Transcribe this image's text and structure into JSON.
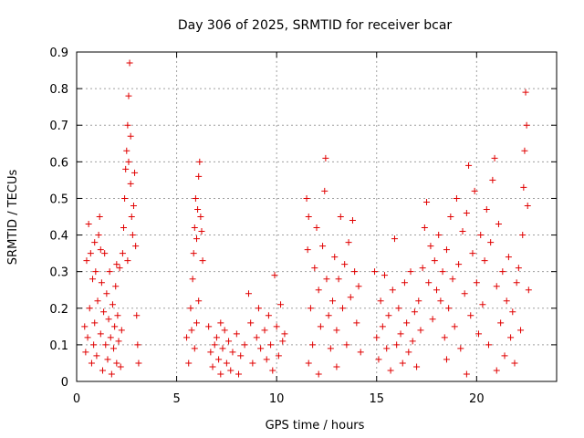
{
  "chart_data": {
    "type": "scatter",
    "title": "Day 306 of 2025, SRMTID for receiver bcar",
    "xlabel": "GPS time / hours",
    "ylabel": "SRMTID / TECUs",
    "xlim": [
      0,
      24
    ],
    "ylim": [
      0,
      0.9
    ],
    "xticks": [
      0,
      5,
      10,
      15,
      20
    ],
    "xtick_labels": [
      "0",
      "5",
      "10",
      "15",
      "20"
    ],
    "yticks": [
      0,
      0.1,
      0.2,
      0.3,
      0.4,
      0.5,
      0.6,
      0.7,
      0.8,
      0.9
    ],
    "ytick_labels": [
      "0",
      "0.1",
      "0.2",
      "0.3",
      "0.4",
      "0.5",
      "0.6",
      "0.7",
      "0.8",
      "0.9"
    ],
    "grid": true,
    "marker": "plus",
    "color": "#e00000",
    "series": [
      {
        "name": "SRMTID",
        "points": [
          [
            0.4,
            0.15
          ],
          [
            0.45,
            0.08
          ],
          [
            0.5,
            0.33
          ],
          [
            0.55,
            0.12
          ],
          [
            0.6,
            0.43
          ],
          [
            0.65,
            0.2
          ],
          [
            0.7,
            0.35
          ],
          [
            0.75,
            0.05
          ],
          [
            0.8,
            0.28
          ],
          [
            0.85,
            0.1
          ],
          [
            0.9,
            0.16
          ],
          [
            0.95,
            0.3
          ],
          [
            1.0,
            0.07
          ],
          [
            1.05,
            0.22
          ],
          [
            1.1,
            0.4
          ],
          [
            1.15,
            0.45
          ],
          [
            1.2,
            0.13
          ],
          [
            1.25,
            0.27
          ],
          [
            1.3,
            0.03
          ],
          [
            1.35,
            0.19
          ],
          [
            1.4,
            0.35
          ],
          [
            1.45,
            0.1
          ],
          [
            1.5,
            0.24
          ],
          [
            1.55,
            0.06
          ],
          [
            1.6,
            0.17
          ],
          [
            1.65,
            0.3
          ],
          [
            1.7,
            0.12
          ],
          [
            1.75,
            0.02
          ],
          [
            1.8,
            0.21
          ],
          [
            1.85,
            0.09
          ],
          [
            1.9,
            0.15
          ],
          [
            1.95,
            0.26
          ],
          [
            2.0,
            0.05
          ],
          [
            2.05,
            0.18
          ],
          [
            2.1,
            0.11
          ],
          [
            2.15,
            0.31
          ],
          [
            2.2,
            0.04
          ],
          [
            2.25,
            0.14
          ],
          [
            2.3,
            0.35
          ],
          [
            2.35,
            0.42
          ],
          [
            2.4,
            0.5
          ],
          [
            2.45,
            0.58
          ],
          [
            2.5,
            0.63
          ],
          [
            2.55,
            0.7
          ],
          [
            2.6,
            0.78
          ],
          [
            2.65,
            0.87
          ],
          [
            2.7,
            0.54
          ],
          [
            2.75,
            0.45
          ],
          [
            2.8,
            0.4
          ],
          [
            2.85,
            0.48
          ],
          [
            2.9,
            0.57
          ],
          [
            2.95,
            0.37
          ],
          [
            3.0,
            0.18
          ],
          [
            3.05,
            0.1
          ],
          [
            3.1,
            0.05
          ],
          [
            2.0,
            0.32
          ],
          [
            1.2,
            0.36
          ],
          [
            0.9,
            0.38
          ],
          [
            2.6,
            0.6
          ],
          [
            2.7,
            0.67
          ],
          [
            2.55,
            0.33
          ],
          [
            5.5,
            0.12
          ],
          [
            5.6,
            0.05
          ],
          [
            5.7,
            0.2
          ],
          [
            5.8,
            0.28
          ],
          [
            5.85,
            0.35
          ],
          [
            5.9,
            0.42
          ],
          [
            5.95,
            0.5
          ],
          [
            6.0,
            0.39
          ],
          [
            6.05,
            0.47
          ],
          [
            6.1,
            0.56
          ],
          [
            6.15,
            0.6
          ],
          [
            6.2,
            0.45
          ],
          [
            6.25,
            0.41
          ],
          [
            6.3,
            0.33
          ],
          [
            6.0,
            0.16
          ],
          [
            5.9,
            0.09
          ],
          [
            6.1,
            0.22
          ],
          [
            5.75,
            0.14
          ],
          [
            6.6,
            0.15
          ],
          [
            6.7,
            0.08
          ],
          [
            6.8,
            0.04
          ],
          [
            6.9,
            0.1
          ],
          [
            7.0,
            0.12
          ],
          [
            7.1,
            0.06
          ],
          [
            7.2,
            0.02
          ],
          [
            7.3,
            0.09
          ],
          [
            7.4,
            0.14
          ],
          [
            7.5,
            0.05
          ],
          [
            7.6,
            0.11
          ],
          [
            7.7,
            0.03
          ],
          [
            7.8,
            0.08
          ],
          [
            8.0,
            0.13
          ],
          [
            8.2,
            0.07
          ],
          [
            8.4,
            0.1
          ],
          [
            8.6,
            0.24
          ],
          [
            8.7,
            0.16
          ],
          [
            8.8,
            0.05
          ],
          [
            9.0,
            0.12
          ],
          [
            9.1,
            0.2
          ],
          [
            9.2,
            0.09
          ],
          [
            9.4,
            0.14
          ],
          [
            9.5,
            0.06
          ],
          [
            9.6,
            0.18
          ],
          [
            9.7,
            0.1
          ],
          [
            9.8,
            0.03
          ],
          [
            9.9,
            0.29
          ],
          [
            10.0,
            0.15
          ],
          [
            10.1,
            0.07
          ],
          [
            10.2,
            0.21
          ],
          [
            10.3,
            0.11
          ],
          [
            10.4,
            0.13
          ],
          [
            7.2,
            0.16
          ],
          [
            8.1,
            0.02
          ],
          [
            11.5,
            0.5
          ],
          [
            11.55,
            0.36
          ],
          [
            11.6,
            0.45
          ],
          [
            11.7,
            0.2
          ],
          [
            11.8,
            0.1
          ],
          [
            11.9,
            0.31
          ],
          [
            12.0,
            0.42
          ],
          [
            12.1,
            0.25
          ],
          [
            12.2,
            0.15
          ],
          [
            12.3,
            0.37
          ],
          [
            12.4,
            0.52
          ],
          [
            12.45,
            0.61
          ],
          [
            12.5,
            0.28
          ],
          [
            12.6,
            0.18
          ],
          [
            12.7,
            0.09
          ],
          [
            12.8,
            0.22
          ],
          [
            12.9,
            0.34
          ],
          [
            13.0,
            0.14
          ],
          [
            13.1,
            0.28
          ],
          [
            13.2,
            0.45
          ],
          [
            13.3,
            0.2
          ],
          [
            13.4,
            0.32
          ],
          [
            13.5,
            0.1
          ],
          [
            13.6,
            0.38
          ],
          [
            13.7,
            0.23
          ],
          [
            13.8,
            0.44
          ],
          [
            13.9,
            0.3
          ],
          [
            14.0,
            0.16
          ],
          [
            14.1,
            0.26
          ],
          [
            14.2,
            0.08
          ],
          [
            11.6,
            0.05
          ],
          [
            12.1,
            0.02
          ],
          [
            13.0,
            0.04
          ],
          [
            14.9,
            0.3
          ],
          [
            15.0,
            0.12
          ],
          [
            15.1,
            0.06
          ],
          [
            15.2,
            0.22
          ],
          [
            15.3,
            0.15
          ],
          [
            15.4,
            0.29
          ],
          [
            15.5,
            0.09
          ],
          [
            15.6,
            0.18
          ],
          [
            15.7,
            0.03
          ],
          [
            15.8,
            0.25
          ],
          [
            15.9,
            0.39
          ],
          [
            16.0,
            0.1
          ],
          [
            16.1,
            0.2
          ],
          [
            16.2,
            0.13
          ],
          [
            16.3,
            0.05
          ],
          [
            16.4,
            0.27
          ],
          [
            16.5,
            0.16
          ],
          [
            16.6,
            0.08
          ],
          [
            16.7,
            0.3
          ],
          [
            16.8,
            0.11
          ],
          [
            16.9,
            0.19
          ],
          [
            17.0,
            0.04
          ],
          [
            17.1,
            0.22
          ],
          [
            17.2,
            0.14
          ],
          [
            17.3,
            0.31
          ],
          [
            17.4,
            0.42
          ],
          [
            17.5,
            0.49
          ],
          [
            17.6,
            0.27
          ],
          [
            17.7,
            0.37
          ],
          [
            17.8,
            0.17
          ],
          [
            17.9,
            0.33
          ],
          [
            18.0,
            0.25
          ],
          [
            18.1,
            0.4
          ],
          [
            18.2,
            0.22
          ],
          [
            18.3,
            0.3
          ],
          [
            18.4,
            0.12
          ],
          [
            18.5,
            0.36
          ],
          [
            18.6,
            0.2
          ],
          [
            18.7,
            0.45
          ],
          [
            18.8,
            0.28
          ],
          [
            18.9,
            0.15
          ],
          [
            19.0,
            0.5
          ],
          [
            19.1,
            0.32
          ],
          [
            19.2,
            0.09
          ],
          [
            19.3,
            0.41
          ],
          [
            19.4,
            0.24
          ],
          [
            19.5,
            0.46
          ],
          [
            19.6,
            0.59
          ],
          [
            19.7,
            0.18
          ],
          [
            19.8,
            0.35
          ],
          [
            19.9,
            0.52
          ],
          [
            20.0,
            0.27
          ],
          [
            20.1,
            0.13
          ],
          [
            20.2,
            0.4
          ],
          [
            20.3,
            0.21
          ],
          [
            20.4,
            0.33
          ],
          [
            20.5,
            0.47
          ],
          [
            20.6,
            0.1
          ],
          [
            20.7,
            0.38
          ],
          [
            20.8,
            0.55
          ],
          [
            20.9,
            0.61
          ],
          [
            21.0,
            0.26
          ],
          [
            21.1,
            0.43
          ],
          [
            21.2,
            0.16
          ],
          [
            21.3,
            0.3
          ],
          [
            21.4,
            0.07
          ],
          [
            21.5,
            0.22
          ],
          [
            21.6,
            0.34
          ],
          [
            21.7,
            0.12
          ],
          [
            21.8,
            0.19
          ],
          [
            21.9,
            0.05
          ],
          [
            22.0,
            0.27
          ],
          [
            22.1,
            0.31
          ],
          [
            22.2,
            0.14
          ],
          [
            22.3,
            0.4
          ],
          [
            22.35,
            0.53
          ],
          [
            22.4,
            0.63
          ],
          [
            22.45,
            0.79
          ],
          [
            22.5,
            0.7
          ],
          [
            22.55,
            0.48
          ],
          [
            22.6,
            0.25
          ],
          [
            18.5,
            0.06
          ],
          [
            19.5,
            0.02
          ],
          [
            21.0,
            0.03
          ]
        ]
      }
    ]
  }
}
